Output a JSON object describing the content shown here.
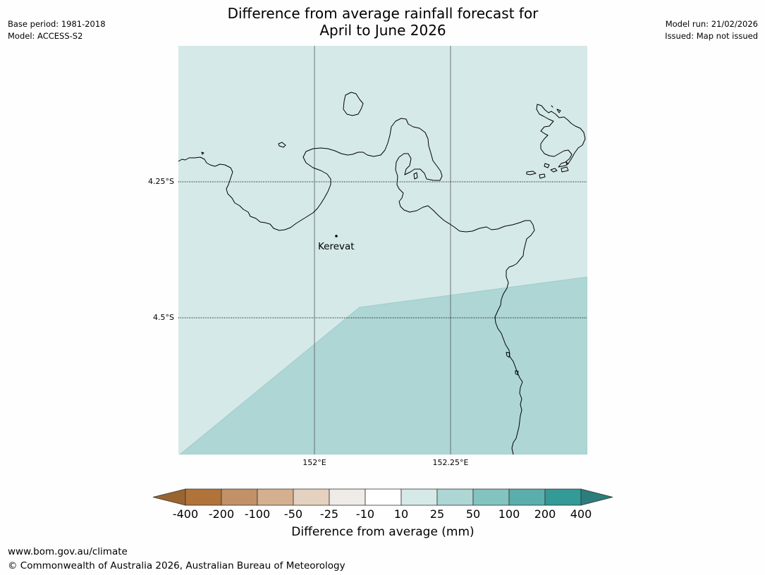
{
  "header": {
    "title_line1": "Difference from average rainfall forecast for",
    "title_line2": "April to June 2026",
    "base_period": "Base period: 1981-2018",
    "model": "Model: ACCESS-S2",
    "model_run": "Model run: 21/02/2026",
    "issued": "Issued: Map not issued"
  },
  "map": {
    "latitude_labels": [
      "4.25°S",
      "4.5°S"
    ],
    "longitude_labels": [
      "152°E",
      "152.25°E"
    ],
    "places": [
      {
        "name": "Kerevat"
      }
    ],
    "forecast_categories_shown": [
      "10 to 25",
      "25 to 50"
    ],
    "colors": {
      "coastline": "#000000",
      "gridline": "#555555"
    }
  },
  "legend": {
    "title": "Difference from average (mm)",
    "ticks": [
      "-400",
      "-200",
      "-100",
      "-50",
      "-25",
      "-10",
      "10",
      "25",
      "50",
      "100",
      "200",
      "400"
    ],
    "colors": [
      "#9a6431",
      "#b0743b",
      "#c29168",
      "#d4b090",
      "#e5d1bf",
      "#efebe7",
      "#ffffff",
      "#d5e9e8",
      "#add6d5",
      "#83c3c0",
      "#5aaeac",
      "#339a98",
      "#2c7d7b"
    ]
  },
  "footer": {
    "url": "www.bom.gov.au/climate",
    "copyright": "© Commonwealth of Australia 2026, Australian Bureau of Meteorology"
  }
}
